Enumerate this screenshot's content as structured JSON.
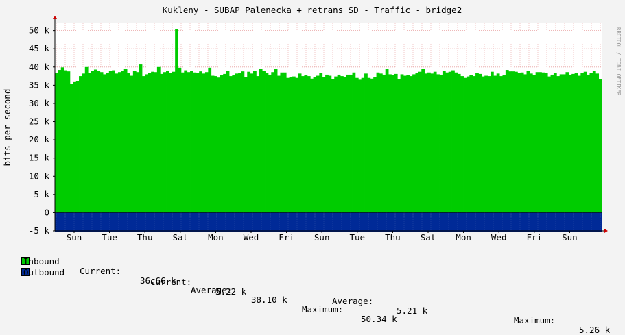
{
  "chart_data": {
    "type": "area",
    "title": "Kukleny - SUBAP Palenecka + retrans SD - Traffic - bridge2",
    "ylabel": "bits per second",
    "watermark": "RRDTOOL / TOBI OETIKER",
    "ylim": [
      -5000,
      52000
    ],
    "yticks": [
      -5000,
      0,
      5000,
      10000,
      15000,
      20000,
      25000,
      30000,
      35000,
      40000,
      45000,
      50000
    ],
    "ytick_labels": [
      "-5 k",
      "0",
      "5 k",
      "10 k",
      "15 k",
      "20 k",
      "25 k",
      "30 k",
      "35 k",
      "40 k",
      "45 k",
      "50 k"
    ],
    "xtick_labels": [
      "Sun",
      "Tue",
      "Thu",
      "Sat",
      "Mon",
      "Wed",
      "Fri",
      "Sun",
      "Tue",
      "Thu",
      "Sat",
      "Mon",
      "Wed",
      "Fri",
      "Sun"
    ],
    "colors": {
      "inbound": "#00cc00",
      "outbound": "#002a97",
      "grid": "#e8a0a0",
      "axis": "#000000",
      "background": "#ffffff"
    },
    "series": [
      {
        "name": "Inbound",
        "color": "#00cc00",
        "current": "36.66 k",
        "average": "38.10 k",
        "maximum": "50.34 k",
        "values": [
          38.4,
          39.2,
          39.9,
          39.1,
          38.8,
          35.4,
          35.9,
          36.2,
          37.5,
          38.2,
          40.0,
          38.4,
          39.0,
          39.3,
          38.9,
          38.6,
          38.0,
          38.4,
          38.9,
          39.1,
          38.2,
          38.6,
          38.9,
          39.4,
          38.3,
          37.6,
          39.0,
          38.6,
          40.7,
          37.5,
          38.0,
          38.4,
          38.7,
          38.6,
          40.0,
          38.1,
          38.6,
          38.9,
          38.4,
          38.7,
          50.34,
          39.8,
          38.5,
          39.1,
          38.6,
          38.9,
          38.5,
          38.3,
          38.8,
          38.2,
          38.6,
          39.8,
          37.6,
          37.5,
          37.1,
          37.7,
          38.1,
          38.9,
          37.5,
          37.7,
          38.2,
          38.4,
          38.8,
          37.2,
          38.7,
          38.2,
          39.0,
          37.5,
          39.5,
          38.9,
          38.3,
          37.9,
          38.6,
          39.4,
          37.6,
          38.5,
          38.5,
          37.0,
          37.2,
          37.4,
          37.0,
          38.2,
          37.5,
          37.7,
          37.5,
          36.8,
          37.3,
          37.6,
          38.4,
          37.2,
          37.9,
          37.6,
          36.7,
          37.4,
          37.9,
          37.5,
          37.2,
          37.9,
          37.9,
          38.5,
          37.0,
          36.5,
          37.0,
          38.2,
          37.0,
          36.8,
          37.3,
          38.5,
          38.2,
          37.9,
          39.4,
          38.0,
          37.7,
          38.1,
          36.7,
          38.0,
          37.6,
          37.7,
          37.5,
          38.0,
          38.3,
          38.7,
          39.4,
          38.2,
          38.5,
          38.2,
          38.7,
          38.0,
          37.9,
          39.0,
          38.5,
          38.7,
          39.1,
          38.5,
          38.1,
          37.5,
          37.0,
          37.4,
          37.8,
          37.5,
          38.3,
          38.1,
          37.4,
          37.6,
          37.5,
          38.7,
          37.6,
          38.2,
          37.5,
          37.7,
          39.2,
          38.8,
          38.8,
          38.7,
          38.4,
          38.5,
          38.0,
          38.9,
          38.2,
          37.8,
          38.6,
          38.6,
          38.5,
          38.3,
          37.4,
          37.9,
          38.3,
          37.5,
          38.0,
          38.0,
          38.6,
          37.9,
          38.1,
          38.4,
          37.6,
          38.4,
          38.7,
          37.9,
          38.3,
          38.9,
          38.2,
          36.66
        ]
      },
      {
        "name": "Outbound",
        "color": "#002a97",
        "current": "5.22 k",
        "average": "5.21 k",
        "maximum": "5.26 k",
        "constant": -5200
      }
    ],
    "legend": {
      "current_label": "Current:",
      "average_label": "Average:",
      "maximum_label": "Maximum:"
    }
  }
}
